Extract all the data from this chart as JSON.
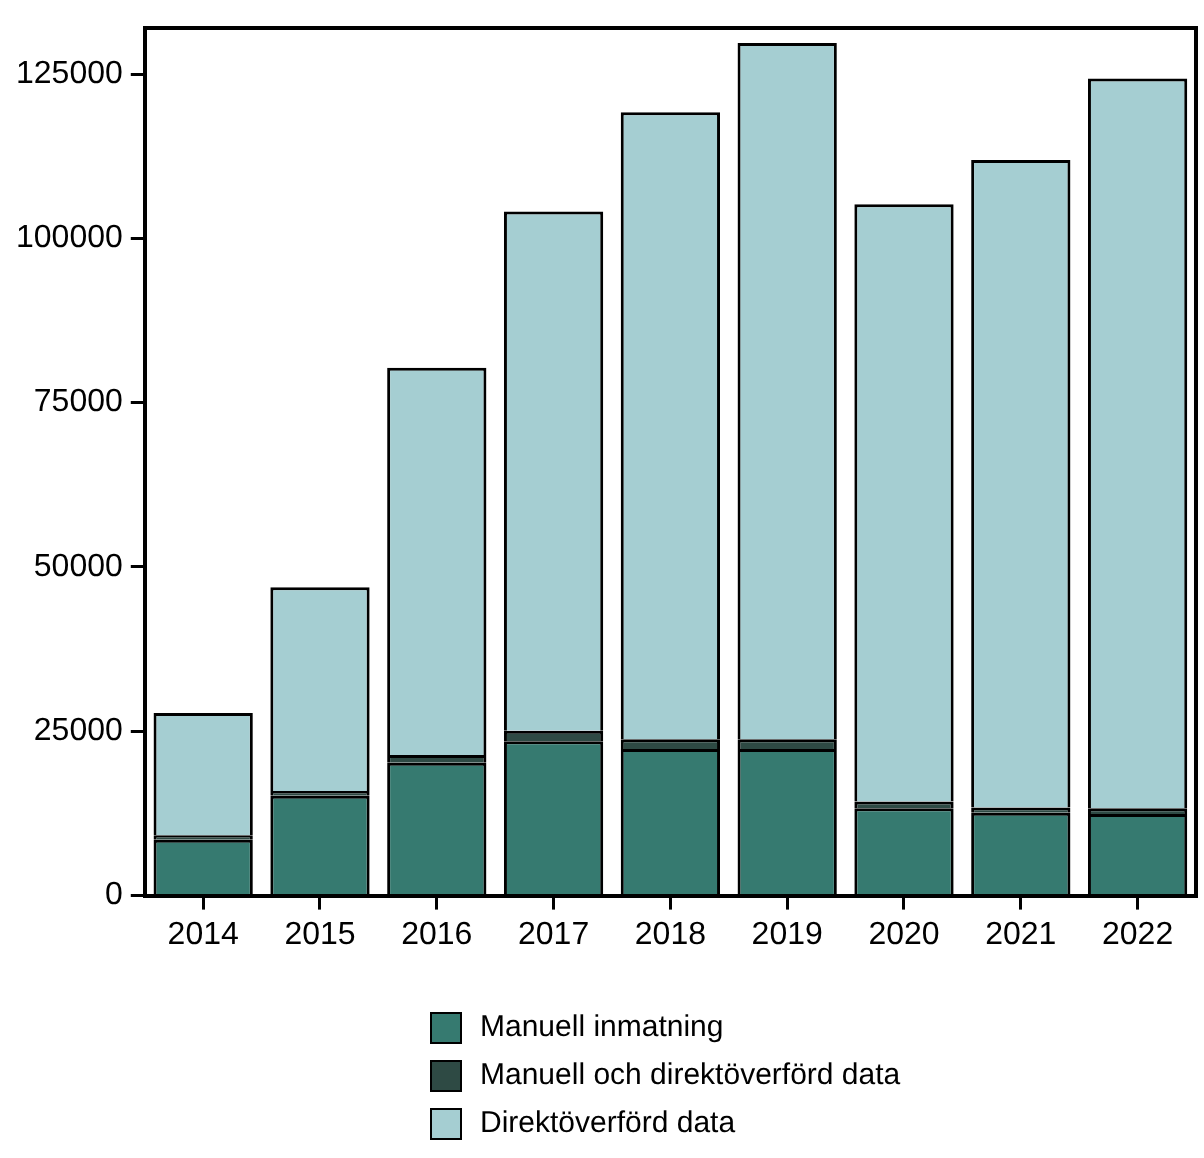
{
  "chart_data": {
    "type": "bar",
    "stacked": true,
    "categories": [
      "2014",
      "2015",
      "2016",
      "2017",
      "2018",
      "2019",
      "2020",
      "2021",
      "2022"
    ],
    "series": [
      {
        "name": "Manuell inmatning",
        "color": "#367a70",
        "values": [
          8500,
          15200,
          20200,
          23500,
          22300,
          22300,
          13300,
          12600,
          12400
        ]
      },
      {
        "name": "Manuell och direktöverförd data",
        "color": "#2e4a44",
        "values": [
          700,
          700,
          1200,
          1600,
          1500,
          1500,
          1000,
          800,
          900
        ]
      },
      {
        "name": "Direktöverförd data",
        "color": "#a5ced2",
        "values": [
          18600,
          31000,
          58900,
          79000,
          95400,
          105900,
          90900,
          98500,
          111000
        ]
      }
    ],
    "ylim": [
      0,
      132000
    ],
    "yticks": [
      0,
      25000,
      50000,
      75000,
      100000,
      125000
    ],
    "legend": "bottom"
  }
}
